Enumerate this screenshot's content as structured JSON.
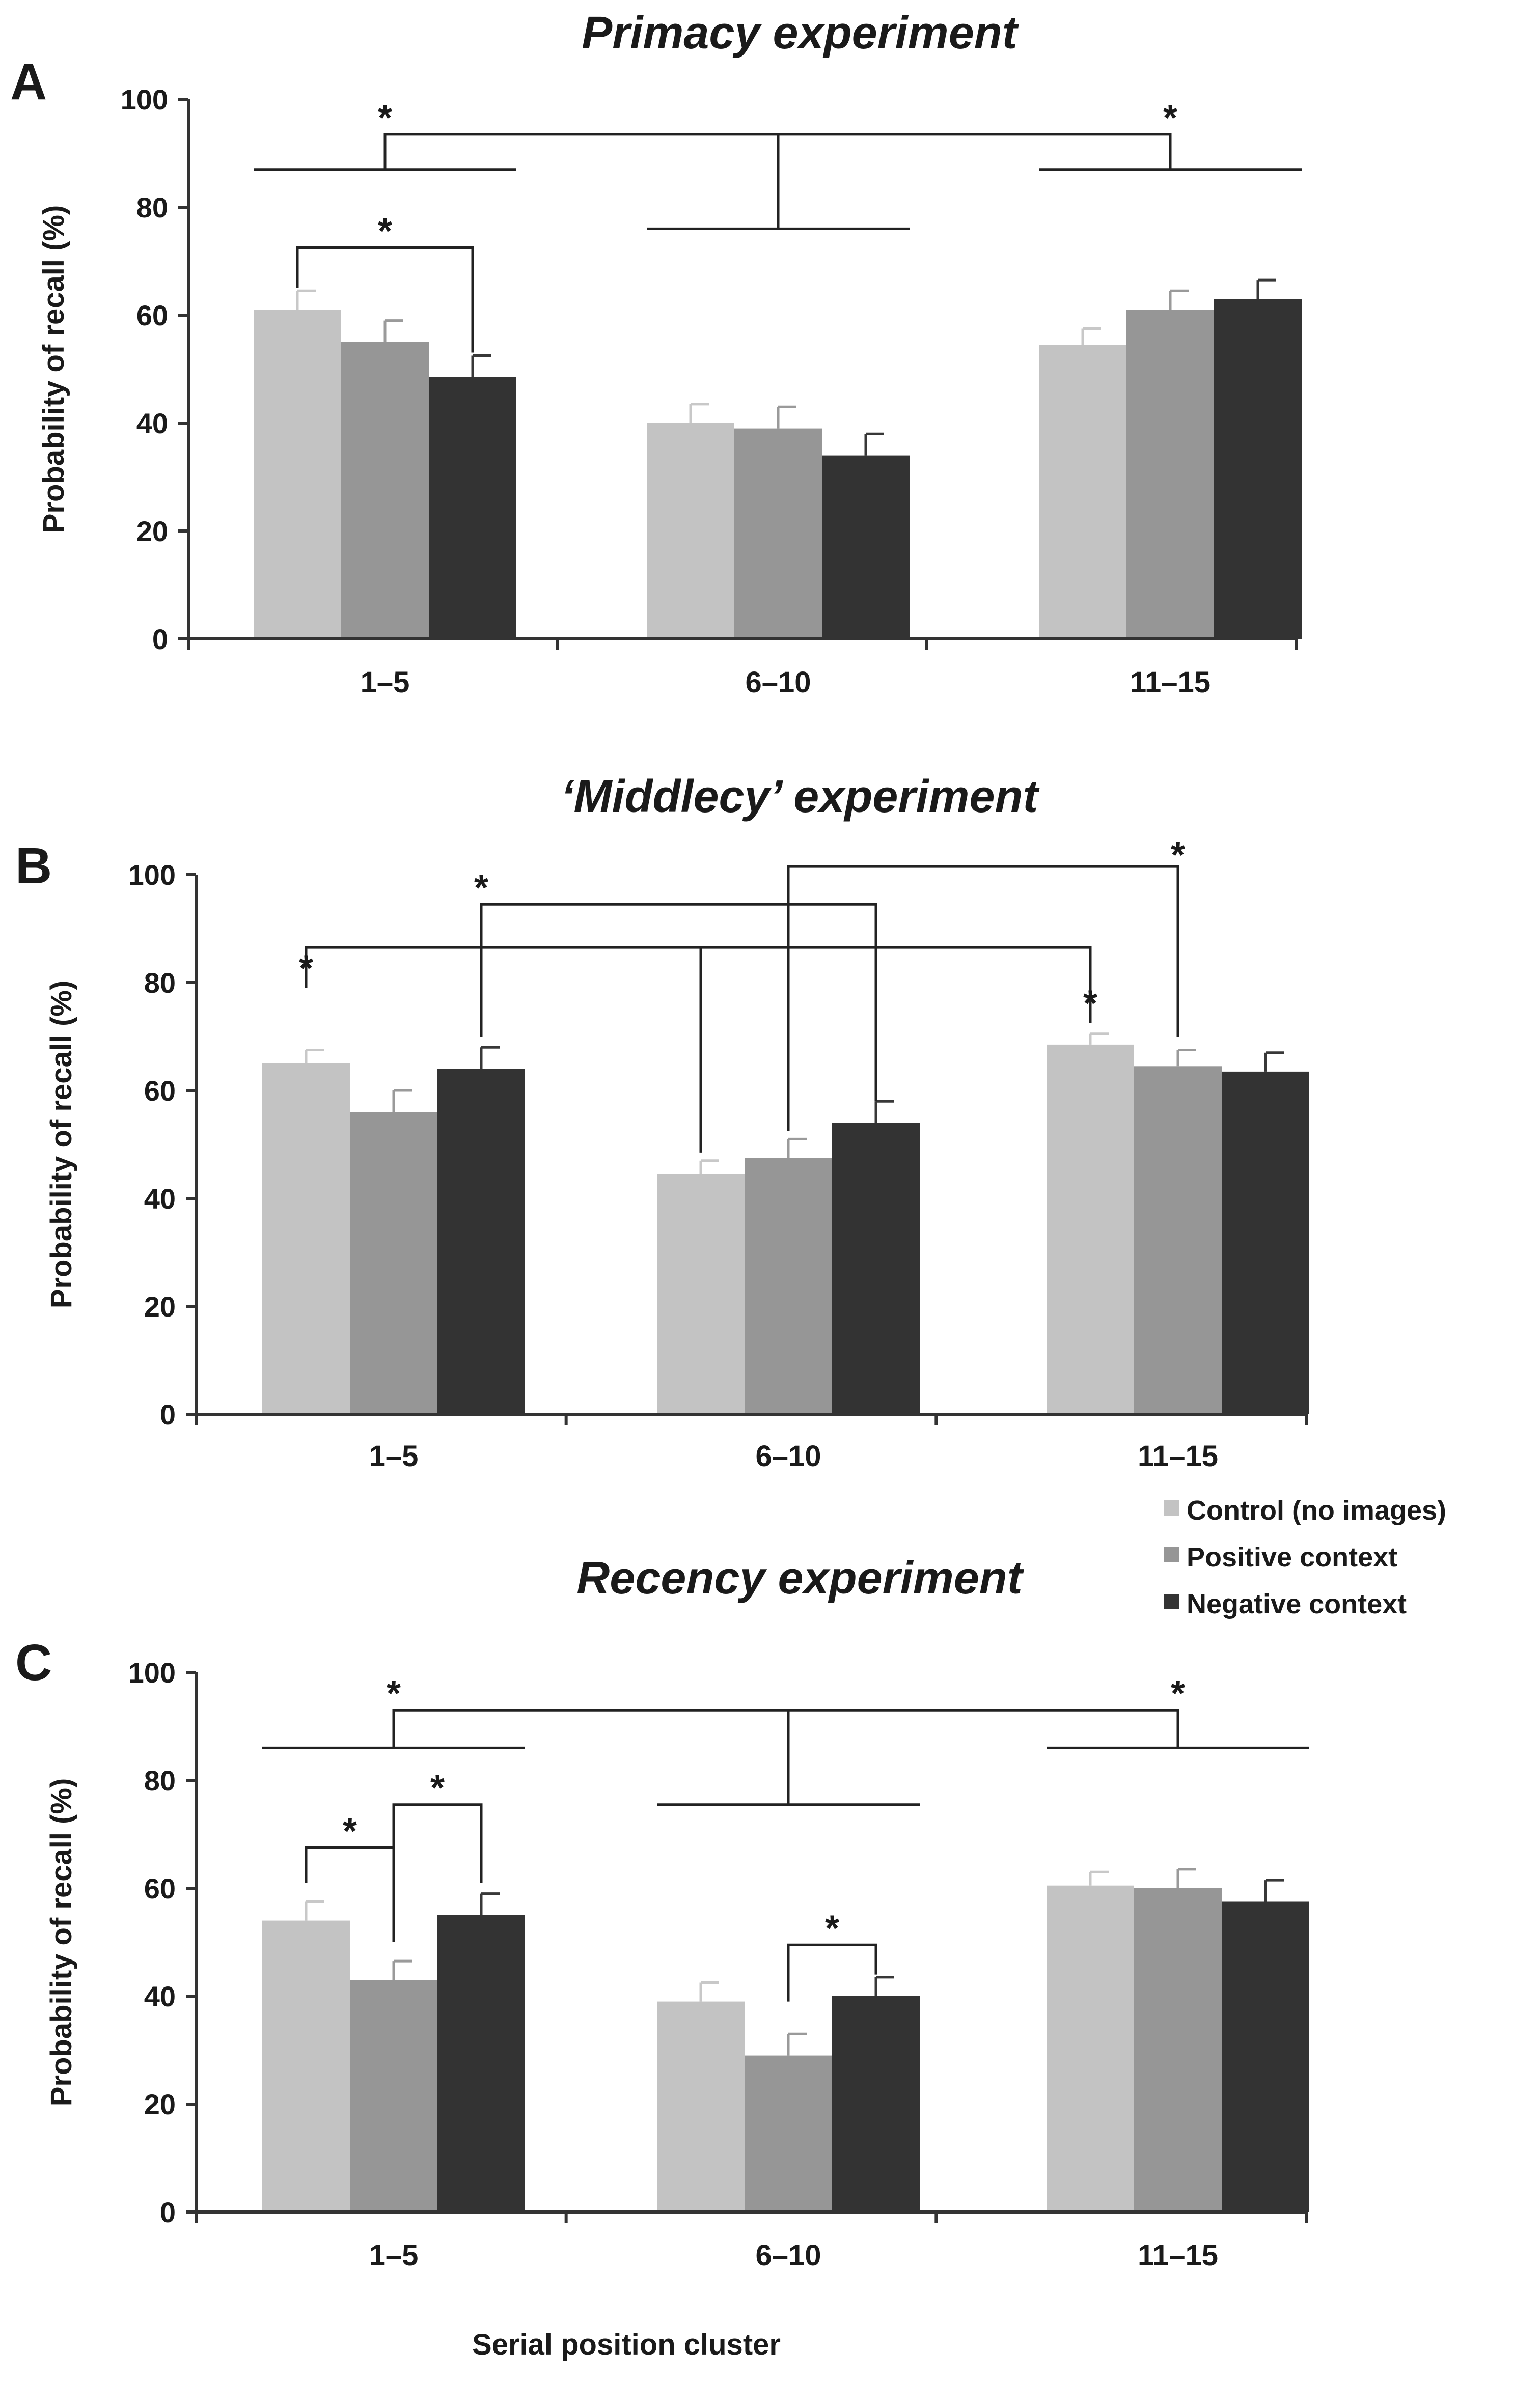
{
  "chart_data": [
    {
      "type": "bar",
      "panel": "A",
      "title": "Primacy experiment",
      "xlabel": "",
      "ylabel": "Probability of recall  (%)",
      "ylim": [
        0,
        100
      ],
      "yticks": [
        "0",
        "20",
        "40",
        "60",
        "80",
        "100"
      ],
      "categories": [
        "1–5",
        "6–10",
        "11–15"
      ],
      "series": [
        {
          "name": "Control (no images)",
          "values": [
            61,
            40,
            54.5
          ],
          "errors": [
            3.5,
            3.5,
            3
          ]
        },
        {
          "name": "Positive context",
          "values": [
            55,
            39,
            61
          ],
          "errors": [
            4,
            4,
            3.5
          ]
        },
        {
          "name": "Negative context",
          "values": [
            48.5,
            34,
            63
          ],
          "errors": [
            4,
            4,
            3.5
          ]
        }
      ],
      "significance": [
        {
          "label": "*",
          "between": "1–5: Control vs Negative context"
        },
        {
          "label": "*",
          "between": "cluster 1–5 vs cluster 6–10"
        },
        {
          "label": "*",
          "between": "cluster 11–15 vs cluster 6–10"
        }
      ],
      "star": "*"
    },
    {
      "type": "bar",
      "panel": "B",
      "title": "‘Middlecy’ experiment",
      "xlabel": "",
      "ylabel": "Probability of recall  (%)",
      "ylim": [
        0,
        100
      ],
      "yticks": [
        "0",
        "20",
        "40",
        "60",
        "80",
        "100"
      ],
      "categories": [
        "1–5",
        "6–10",
        "11–15"
      ],
      "series": [
        {
          "name": "Control (no images)",
          "values": [
            65,
            44.5,
            68.5
          ],
          "errors": [
            2.5,
            2.5,
            2
          ]
        },
        {
          "name": "Positive context",
          "values": [
            56,
            47.5,
            64.5
          ],
          "errors": [
            4,
            3.5,
            3
          ]
        },
        {
          "name": "Negative context",
          "values": [
            64,
            54,
            63.5
          ],
          "errors": [
            4,
            4,
            3.5
          ]
        }
      ],
      "significance": [
        {
          "label": "*",
          "between": "Control 1–5 vs Control 11–15 vs Control 6–10"
        },
        {
          "label": "*",
          "between": "Negative 1–5 vs Negative 6–10"
        },
        {
          "label": "*",
          "between": "Positive 6–10 vs Positive 11–15"
        }
      ],
      "star": "*"
    },
    {
      "type": "bar",
      "panel": "C",
      "title": "Recency experiment",
      "xlabel": "Serial position cluster",
      "ylabel": "Probability of recall  (%)",
      "ylim": [
        0,
        100
      ],
      "yticks": [
        "0",
        "20",
        "40",
        "60",
        "80",
        "100"
      ],
      "categories": [
        "1–5",
        "6–10",
        "11–15"
      ],
      "series": [
        {
          "name": "Control (no images)",
          "values": [
            54,
            39,
            60.5
          ],
          "errors": [
            3.5,
            3.5,
            2.5
          ]
        },
        {
          "name": "Positive context",
          "values": [
            43,
            29,
            60
          ],
          "errors": [
            3.5,
            4,
            3.5
          ]
        },
        {
          "name": "Negative context",
          "values": [
            55,
            40,
            57.5
          ],
          "errors": [
            4,
            3.5,
            4
          ]
        }
      ],
      "significance": [
        {
          "label": "*",
          "between": "1–5: Control vs Positive context"
        },
        {
          "label": "*",
          "between": "1–5: Positive vs Negative context"
        },
        {
          "label": "*",
          "between": "6–10: Positive vs Negative context"
        },
        {
          "label": "*",
          "between": "cluster 1–5 vs cluster 6–10"
        },
        {
          "label": "*",
          "between": "cluster 11–15 vs cluster 6–10"
        }
      ],
      "star": "*"
    }
  ],
  "legend": {
    "items": [
      {
        "label": "Control (no images)",
        "color": "#c3c3c3"
      },
      {
        "label": "Positive context",
        "color": "#969696"
      },
      {
        "label": "Negative context",
        "color": "#333333"
      }
    ]
  },
  "colors": {
    "control": "#c3c3c3",
    "positive": "#969696",
    "negative": "#333333",
    "error_light": "#c8c8c8",
    "error_mid": "#9a9a9a",
    "error_dark": "#383838"
  }
}
